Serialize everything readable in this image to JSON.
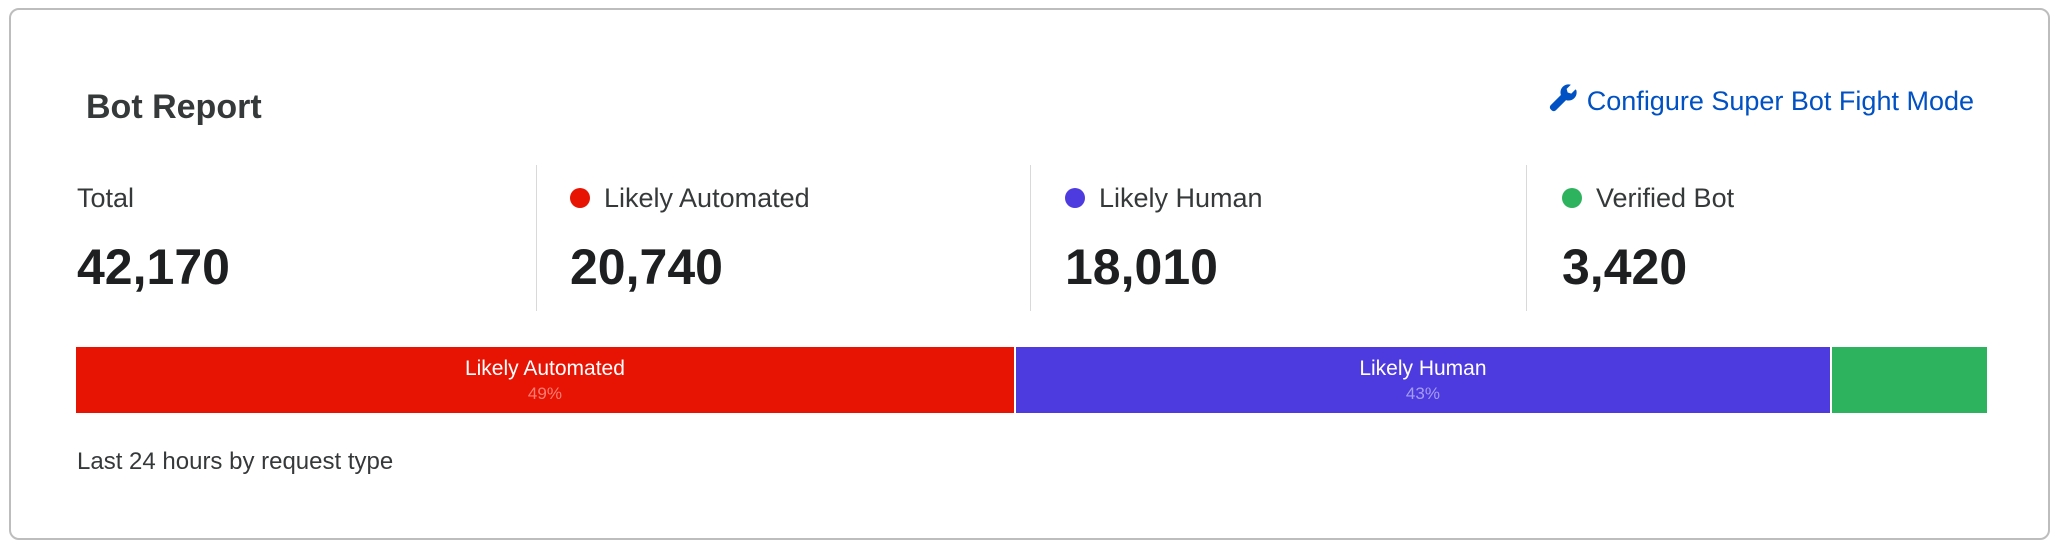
{
  "title": "Bot Report",
  "configure_link": {
    "label": "Configure Super Bot Fight Mode",
    "icon": "wrench-icon"
  },
  "stats": [
    {
      "label": "Total",
      "value": "42,170",
      "color": null
    },
    {
      "label": "Likely Automated",
      "value": "20,740",
      "color": "#e81403"
    },
    {
      "label": "Likely Human",
      "value": "18,010",
      "color": "#4d3bdf"
    },
    {
      "label": "Verified Bot",
      "value": "3,420",
      "color": "#2db35d"
    }
  ],
  "bar": {
    "segments": [
      {
        "label": "Likely Automated",
        "percent_label": "49%",
        "count": 20740,
        "color": "#e81403",
        "pct_color": "#f77e74"
      },
      {
        "label": "Likely Human",
        "percent_label": "43%",
        "count": 18010,
        "color": "#4d3bdf",
        "pct_color": "#a49cf0"
      },
      {
        "label": "",
        "percent_label": "",
        "count": 3420,
        "color": "#2db35d",
        "pct_color": "#ffffff"
      }
    ]
  },
  "footer": "Last 24 hours by request type"
}
